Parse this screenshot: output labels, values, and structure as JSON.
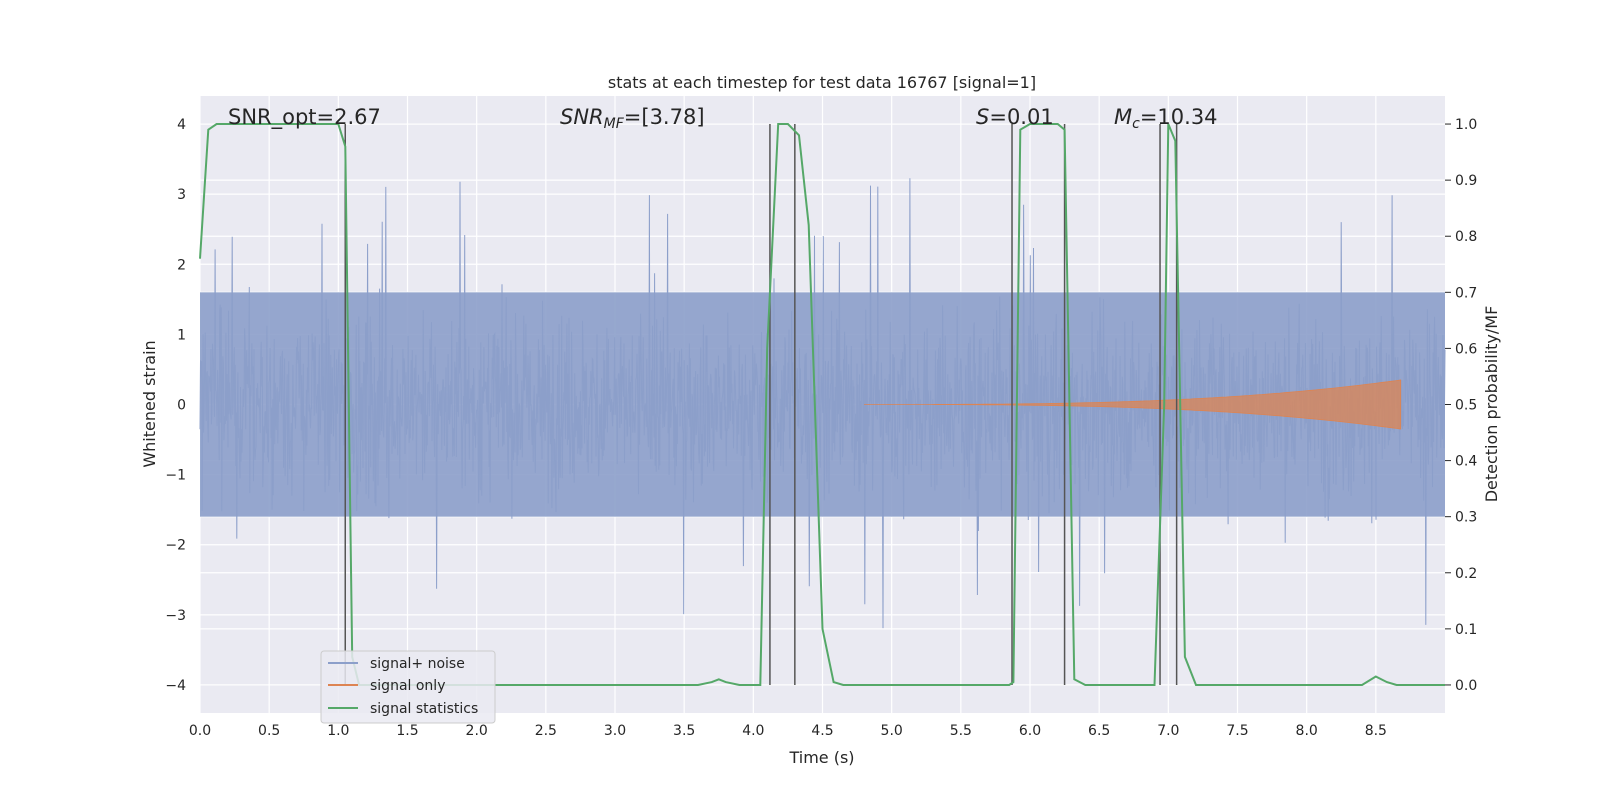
{
  "chart_data": {
    "type": "line",
    "title": "stats at each timestep for test data 16767 [signal=1]",
    "xlabel": "Time (s)",
    "ylabel": "Whitened strain",
    "y2label": "Detection probability/MF",
    "xlim": [
      0,
      9.0
    ],
    "ylim": [
      -4.4,
      4.4
    ],
    "y2lim": [
      -0.05,
      1.05
    ],
    "xticks": [
      "0.0",
      "0.5",
      "1.0",
      "1.5",
      "2.0",
      "2.5",
      "3.0",
      "3.5",
      "4.0",
      "4.5",
      "5.0",
      "5.5",
      "6.0",
      "6.5",
      "7.0",
      "7.5",
      "8.0",
      "8.5"
    ],
    "yticks": [
      "−4",
      "−3",
      "−2",
      "−1",
      "0",
      "1",
      "2",
      "3",
      "4"
    ],
    "y2ticks": [
      "0.0",
      "0.1",
      "0.2",
      "0.3",
      "0.4",
      "0.5",
      "0.6",
      "0.7",
      "0.8",
      "0.9",
      "1.0"
    ],
    "grid": true,
    "legend_position": "lower-left",
    "annotations": {
      "snr_opt": "SNR_opt=2.67",
      "snr_mf_main": "SNR",
      "snr_mf_sub": "MF",
      "snr_mf_rest": "=[3.78]",
      "s_main": "S",
      "s_rest": "=0.01",
      "mc_main": "M",
      "mc_sub": "c",
      "mc_rest": "=10.34"
    },
    "series": [
      {
        "name": "signal+ noise",
        "color": "#8c9fca",
        "noise_amplitude": 1.6,
        "peak_amplitude": 3.3
      },
      {
        "name": "signal only",
        "color": "#dd8452",
        "chirp_start": 4.8,
        "chirp_end": 8.68,
        "chirp_peak_amplitude": 0.35
      },
      {
        "name": "signal statistics",
        "color": "#55a868",
        "x": [
          0.0,
          0.06,
          0.12,
          0.5,
          0.95,
          1.0,
          1.05,
          1.1,
          1.15,
          1.3,
          2.0,
          3.0,
          3.6,
          3.7,
          3.75,
          3.8,
          3.9,
          4.05,
          4.1,
          4.18,
          4.25,
          4.33,
          4.4,
          4.5,
          4.58,
          4.65,
          5.0,
          5.5,
          5.85,
          5.88,
          5.93,
          6.0,
          6.2,
          6.25,
          6.32,
          6.4,
          6.9,
          6.97,
          7.0,
          7.05,
          7.12,
          7.2,
          7.5,
          8.0,
          8.4,
          8.5,
          8.58,
          8.65,
          9.0
        ],
        "values": [
          0.76,
          0.99,
          1.0,
          1.0,
          1.0,
          1.0,
          0.96,
          0.05,
          0.0,
          0.0,
          0.0,
          0.0,
          0.0,
          0.005,
          0.01,
          0.005,
          0.0,
          0.0,
          0.6,
          1.0,
          1.0,
          0.98,
          0.82,
          0.1,
          0.005,
          0.0,
          0.0,
          0.0,
          0.0,
          0.005,
          0.99,
          1.0,
          1.0,
          0.99,
          0.01,
          0.0,
          0.0,
          0.5,
          1.0,
          0.97,
          0.05,
          0.0,
          0.0,
          0.0,
          0.0,
          0.015,
          0.005,
          0.0,
          0.0
        ]
      }
    ],
    "vertical_markers": [
      1.05,
      4.12,
      4.3,
      5.87,
      6.25,
      6.94,
      7.06
    ]
  }
}
